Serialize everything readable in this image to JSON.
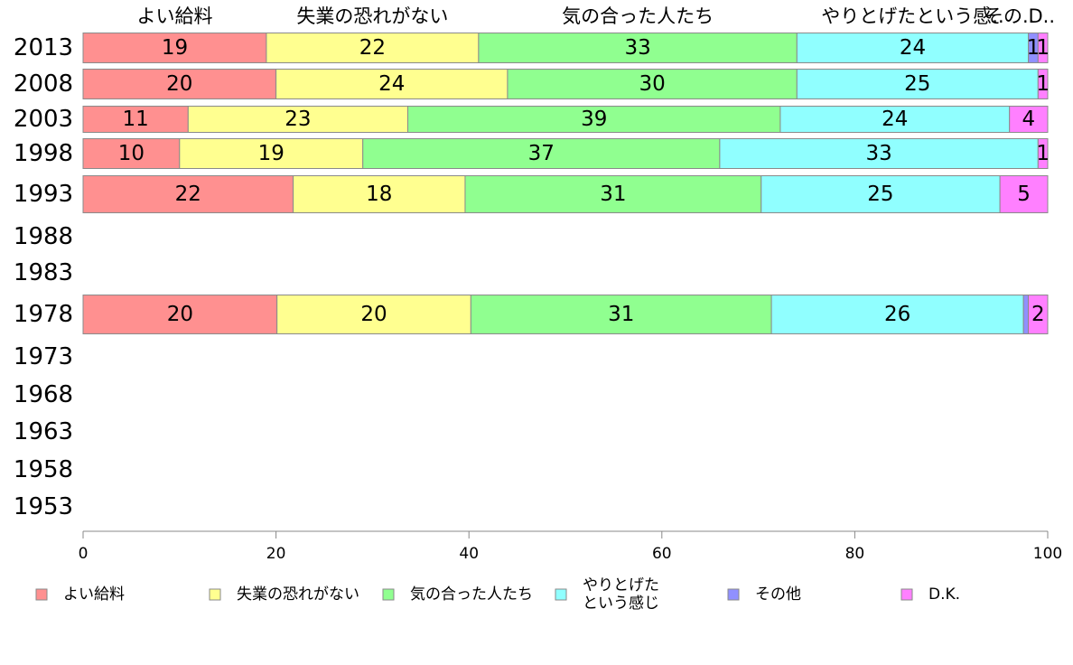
{
  "chart_data": {
    "type": "bar",
    "orientation": "horizontal",
    "stacked": true,
    "categories": [
      "2013",
      "2008",
      "2003",
      "1998",
      "1993",
      "1988",
      "1983",
      "1978",
      "1973",
      "1968",
      "1963",
      "1958",
      "1953"
    ],
    "series": [
      {
        "name": "よい給料",
        "top_label": "よい給料",
        "color": "#ff9090",
        "values": [
          19,
          20,
          11,
          10,
          22,
          null,
          null,
          20,
          null,
          null,
          null,
          null,
          null
        ],
        "labels": [
          "19",
          "20",
          "11",
          "10",
          "22",
          "",
          "",
          "20",
          "",
          "",
          "",
          "",
          ""
        ]
      },
      {
        "name": "失業の恐れがない",
        "top_label": "失業の恐れがない",
        "color": "#ffff90",
        "values": [
          22,
          24,
          23,
          19,
          18,
          null,
          null,
          20,
          null,
          null,
          null,
          null,
          null
        ],
        "labels": [
          "22",
          "24",
          "23",
          "19",
          "18",
          "",
          "",
          "20",
          "",
          "",
          "",
          "",
          ""
        ]
      },
      {
        "name": "気の合った人たち",
        "top_label": "気の合った人たち",
        "color": "#90ff90",
        "values": [
          33,
          30,
          39,
          37,
          31,
          null,
          null,
          31,
          null,
          null,
          null,
          null,
          null
        ],
        "labels": [
          "33",
          "30",
          "39",
          "37",
          "31",
          "",
          "",
          "31",
          "",
          "",
          "",
          "",
          ""
        ]
      },
      {
        "name": [
          "やりとげた",
          "という感じ"
        ],
        "top_label": "やりとげたという感..",
        "color": "#90ffff",
        "values": [
          24,
          25,
          24,
          33,
          25,
          null,
          null,
          26,
          null,
          null,
          null,
          null,
          null
        ],
        "labels": [
          "24",
          "25",
          "24",
          "33",
          "25",
          "",
          "",
          "26",
          "",
          "",
          "",
          "",
          ""
        ]
      },
      {
        "name": "その他",
        "top_label": "その..",
        "color": "#9090ff",
        "values": [
          1,
          0,
          0,
          0,
          0,
          null,
          null,
          0.5,
          null,
          null,
          null,
          null,
          null
        ],
        "labels": [
          "1",
          "",
          "",
          "",
          "",
          "",
          "",
          "",
          "",
          "",
          "",
          "",
          ""
        ]
      },
      {
        "name": "D.K.",
        "top_label": "D..",
        "color": "#ff80ff",
        "values": [
          1,
          1,
          4,
          1,
          5,
          null,
          null,
          2,
          null,
          null,
          null,
          null,
          null
        ],
        "labels": [
          "1",
          "1",
          "4",
          "1",
          "5",
          "",
          "",
          "2",
          "",
          "",
          "",
          "",
          ""
        ]
      }
    ],
    "xlim": [
      0,
      100
    ],
    "x_ticks": [
      "0",
      "20",
      "40",
      "60",
      "80",
      "100"
    ],
    "xlabel": "",
    "ylabel": "",
    "title": "",
    "grid": false,
    "legend_position": "bottom"
  }
}
